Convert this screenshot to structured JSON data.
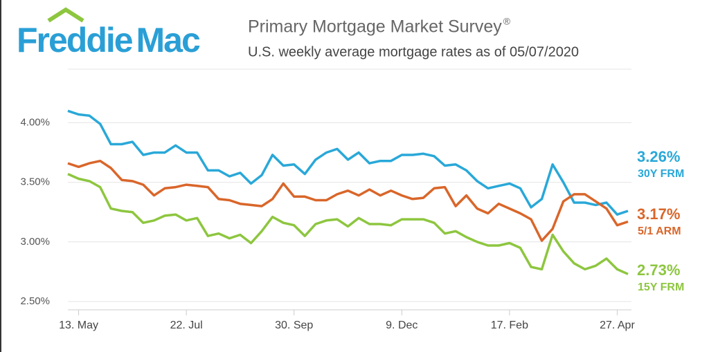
{
  "logo": "Freddie Mac",
  "chart_data": {
    "type": "line",
    "title": "Primary Mortgage Market Survey",
    "title_mark": "®",
    "subtitle": "U.S. weekly average mortgage rates as of 05/07/2020",
    "categories": [
      null,
      "13. May",
      null,
      null,
      null,
      null,
      null,
      null,
      null,
      null,
      null,
      "22. Jul",
      null,
      null,
      null,
      null,
      null,
      null,
      null,
      null,
      null,
      "30. Sep",
      null,
      null,
      null,
      null,
      null,
      null,
      null,
      null,
      null,
      "9. Dec",
      null,
      null,
      null,
      null,
      null,
      null,
      null,
      null,
      null,
      "17. Feb",
      null,
      null,
      null,
      null,
      null,
      null,
      null,
      null,
      null,
      "27. Apr",
      null
    ],
    "ylim": [
      2.43,
      4.45
    ],
    "yticks": [
      {
        "value": 2.5,
        "label": "2.50%"
      },
      {
        "value": 3,
        "label": "3.00%"
      },
      {
        "value": 3.5,
        "label": "3.50%"
      },
      {
        "value": 4,
        "label": "4.00%"
      }
    ],
    "grid": true,
    "series": [
      {
        "name": "30Y FRM",
        "color": "#29a8d8",
        "values": [
          4.1,
          4.07,
          4.06,
          3.99,
          3.82,
          3.82,
          3.84,
          3.73,
          3.75,
          3.75,
          3.81,
          3.75,
          3.75,
          3.6,
          3.6,
          3.55,
          3.58,
          3.49,
          3.56,
          3.73,
          3.64,
          3.65,
          3.57,
          3.69,
          3.75,
          3.78,
          3.69,
          3.75,
          3.66,
          3.68,
          3.68,
          3.73,
          3.73,
          3.74,
          3.72,
          3.64,
          3.65,
          3.6,
          3.51,
          3.45,
          3.47,
          3.49,
          3.45,
          3.29,
          3.36,
          3.65,
          3.5,
          3.33,
          3.33,
          3.31,
          3.33,
          3.23,
          3.26
        ],
        "value_labels": [
          null,
          null,
          null,
          null,
          null,
          null,
          null,
          null,
          null,
          null,
          null,
          null,
          null,
          null,
          null,
          null,
          null,
          null,
          null,
          null,
          null,
          null,
          null,
          null,
          null,
          null,
          null,
          null,
          null,
          null,
          null,
          null,
          null,
          null,
          null,
          null,
          null,
          null,
          null,
          null,
          null,
          null,
          null,
          null,
          null,
          null,
          null,
          null,
          null,
          null,
          null,
          null,
          "3.26%"
        ]
      },
      {
        "name": "5/1 ARM",
        "color": "#d9662a",
        "values": [
          3.66,
          3.63,
          3.66,
          3.68,
          3.62,
          3.52,
          3.51,
          3.48,
          3.39,
          3.45,
          3.46,
          3.48,
          3.47,
          3.46,
          3.36,
          3.35,
          3.32,
          3.31,
          3.3,
          3.36,
          3.49,
          3.38,
          3.38,
          3.35,
          3.35,
          3.4,
          3.43,
          3.39,
          3.44,
          3.39,
          3.43,
          3.39,
          3.36,
          3.37,
          3.45,
          3.46,
          3.3,
          3.39,
          3.28,
          3.24,
          3.32,
          3.28,
          3.24,
          3.19,
          3.01,
          3.11,
          3.34,
          3.4,
          3.4,
          3.34,
          3.28,
          3.14,
          3.17
        ],
        "value_labels": [
          null,
          null,
          null,
          null,
          null,
          null,
          null,
          null,
          null,
          null,
          null,
          null,
          null,
          null,
          null,
          null,
          null,
          null,
          null,
          null,
          null,
          null,
          null,
          null,
          null,
          null,
          null,
          null,
          null,
          null,
          null,
          null,
          null,
          null,
          null,
          null,
          null,
          null,
          null,
          null,
          null,
          null,
          null,
          null,
          null,
          null,
          null,
          null,
          null,
          null,
          null,
          null,
          "3.17%"
        ]
      },
      {
        "name": "15Y FRM",
        "color": "#8dc63f",
        "values": [
          3.57,
          3.53,
          3.51,
          3.46,
          3.28,
          3.26,
          3.25,
          3.16,
          3.18,
          3.22,
          3.23,
          3.18,
          3.2,
          3.05,
          3.07,
          3.03,
          3.06,
          2.99,
          3.09,
          3.21,
          3.16,
          3.14,
          3.05,
          3.15,
          3.18,
          3.19,
          3.13,
          3.2,
          3.15,
          3.15,
          3.14,
          3.19,
          3.19,
          3.19,
          3.16,
          3.07,
          3.09,
          3.04,
          3.0,
          2.97,
          2.97,
          2.99,
          2.95,
          2.79,
          2.77,
          3.06,
          2.92,
          2.82,
          2.77,
          2.8,
          2.86,
          2.77,
          2.73
        ],
        "value_labels": [
          null,
          null,
          null,
          null,
          null,
          null,
          null,
          null,
          null,
          null,
          null,
          null,
          null,
          null,
          null,
          null,
          null,
          null,
          null,
          null,
          null,
          null,
          null,
          null,
          null,
          null,
          null,
          null,
          null,
          null,
          null,
          null,
          null,
          null,
          null,
          null,
          null,
          null,
          null,
          null,
          null,
          null,
          null,
          null,
          null,
          null,
          null,
          null,
          null,
          null,
          null,
          null,
          "2.73%"
        ]
      }
    ]
  }
}
